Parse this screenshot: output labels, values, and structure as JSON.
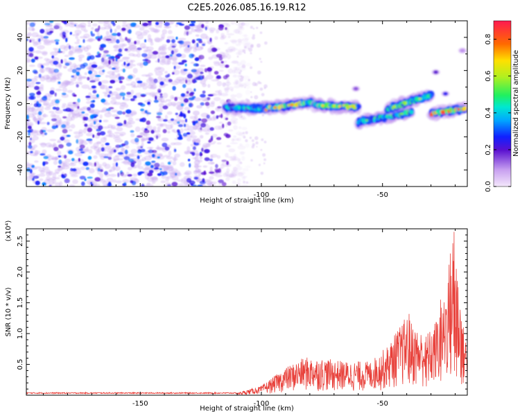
{
  "chart_data": [
    {
      "type": "heatmap",
      "title": "C2E5.2026.085.16.19.R12",
      "xlabel": "Height of straight line (km)",
      "ylabel": "Frequency (Hz)",
      "xlim": [
        -197,
        -15
      ],
      "ylim": [
        -50,
        50
      ],
      "x_ticks": [
        -150,
        -100,
        -50
      ],
      "y_ticks": [
        -40,
        -20,
        0,
        20,
        40
      ],
      "colorbar": {
        "label": "Normalized spectral amplitude",
        "range": [
          0.0,
          0.9
        ],
        "ticks": [
          0.0,
          0.2,
          0.4,
          0.6,
          0.8
        ],
        "tick_labels": [
          "0.0",
          "0.2",
          "0.4",
          "0.6",
          "0.8"
        ]
      },
      "noise_region": {
        "x_range": [
          -197,
          -107
        ],
        "y_range": [
          -50,
          50
        ],
        "amplitude": 0.12
      },
      "ridge_segments": [
        {
          "x_start": -115,
          "x_end": -98,
          "y_start": -2,
          "y_end": -3,
          "peak_amplitude": 0.45
        },
        {
          "x_start": -98,
          "x_end": -78,
          "y_start": -3,
          "y_end": 1,
          "peak_amplitude": 0.75
        },
        {
          "x_start": -78,
          "x_end": -60,
          "y_start": -1,
          "y_end": -2,
          "peak_amplitude": 0.7
        },
        {
          "x_start": -60,
          "x_end": -38,
          "y_start": -11,
          "y_end": -5,
          "peak_amplitude": 0.55
        },
        {
          "x_start": -48,
          "x_end": -30,
          "y_start": -3,
          "y_end": 5,
          "peak_amplitude": 0.6
        },
        {
          "x_start": -30,
          "x_end": -16,
          "y_start": -6,
          "y_end": -3,
          "peak_amplitude": 0.85
        }
      ],
      "isolated_spots": [
        {
          "x": -28,
          "y": 19,
          "amplitude": 0.2
        },
        {
          "x": -17,
          "y": 32,
          "amplitude": 0.1
        },
        {
          "x": -61,
          "y": 9,
          "amplitude": 0.15
        },
        {
          "x": -24,
          "y": 6,
          "amplitude": 0.25
        }
      ]
    },
    {
      "type": "line",
      "xlabel": "Height of straight line (km)",
      "ylabel": "SNR (10 * v/v)",
      "y_multiplier": "(x10⁴)",
      "xlim": [
        -197,
        -15
      ],
      "ylim": [
        0,
        2.7
      ],
      "x_ticks": [
        -150,
        -100,
        -50
      ],
      "y_ticks": [
        0.5,
        1.0,
        1.5,
        2.0,
        2.5
      ],
      "y_tick_labels": [
        "0.5",
        "1.0",
        "1.5",
        "2.0",
        "2.5"
      ],
      "color": "#e8403a",
      "envelope": [
        {
          "x": -197,
          "y": 0.04
        },
        {
          "x": -110,
          "y": 0.04
        },
        {
          "x": -100,
          "y": 0.15
        },
        {
          "x": -90,
          "y": 0.45
        },
        {
          "x": -82,
          "y": 0.62
        },
        {
          "x": -75,
          "y": 0.6
        },
        {
          "x": -65,
          "y": 0.55
        },
        {
          "x": -55,
          "y": 0.55
        },
        {
          "x": -48,
          "y": 0.8
        },
        {
          "x": -40,
          "y": 1.3
        },
        {
          "x": -35,
          "y": 1.05
        },
        {
          "x": -30,
          "y": 1.05
        },
        {
          "x": -25,
          "y": 1.5
        },
        {
          "x": -21,
          "y": 2.65
        },
        {
          "x": -19,
          "y": 2.1
        },
        {
          "x": -17,
          "y": 1.2
        },
        {
          "x": -15,
          "y": 0.85
        }
      ],
      "spike_peaks": [
        {
          "x": -44.5,
          "y": 1.0
        },
        {
          "x": -39,
          "y": 1.32
        },
        {
          "x": -32,
          "y": 0.95
        },
        {
          "x": -26,
          "y": 1.55
        },
        {
          "x": -22,
          "y": 2.3
        },
        {
          "x": -20.5,
          "y": 2.65
        },
        {
          "x": -19.5,
          "y": 2.05
        },
        {
          "x": -17.5,
          "y": 1.2
        }
      ]
    }
  ]
}
